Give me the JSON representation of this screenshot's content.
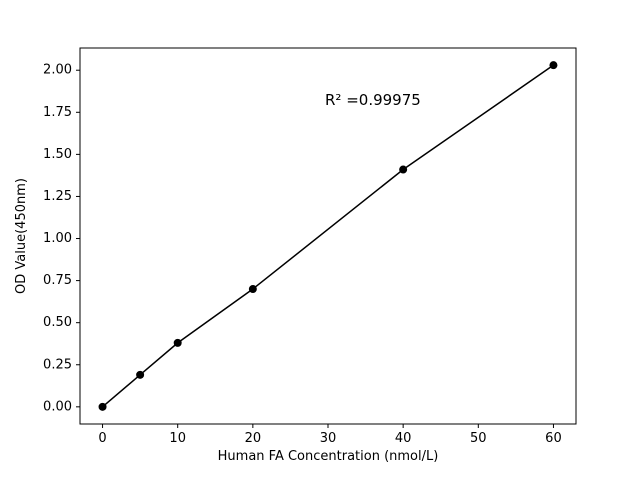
{
  "chart_data": {
    "type": "line",
    "x": [
      0,
      5,
      10,
      20,
      40,
      60
    ],
    "y": [
      0.0,
      0.19,
      0.38,
      0.7,
      1.41,
      2.03
    ],
    "title": "",
    "xlabel": "Human FA Concentration (nmol/L)",
    "ylabel": "OD Value(450nm)",
    "annotation": "R² =0.99975",
    "xlim": [
      -3,
      63
    ],
    "ylim": [
      -0.102,
      2.132
    ],
    "xticks": [
      0,
      10,
      20,
      30,
      40,
      50,
      60
    ],
    "yticks": [
      0.0,
      0.25,
      0.5,
      0.75,
      1.0,
      1.25,
      1.5,
      1.75,
      2.0
    ],
    "line_color": "#000000",
    "marker_color": "#000000",
    "marker_shape": "circle",
    "grid": false,
    "legend": null,
    "background_color": "#ffffff"
  }
}
